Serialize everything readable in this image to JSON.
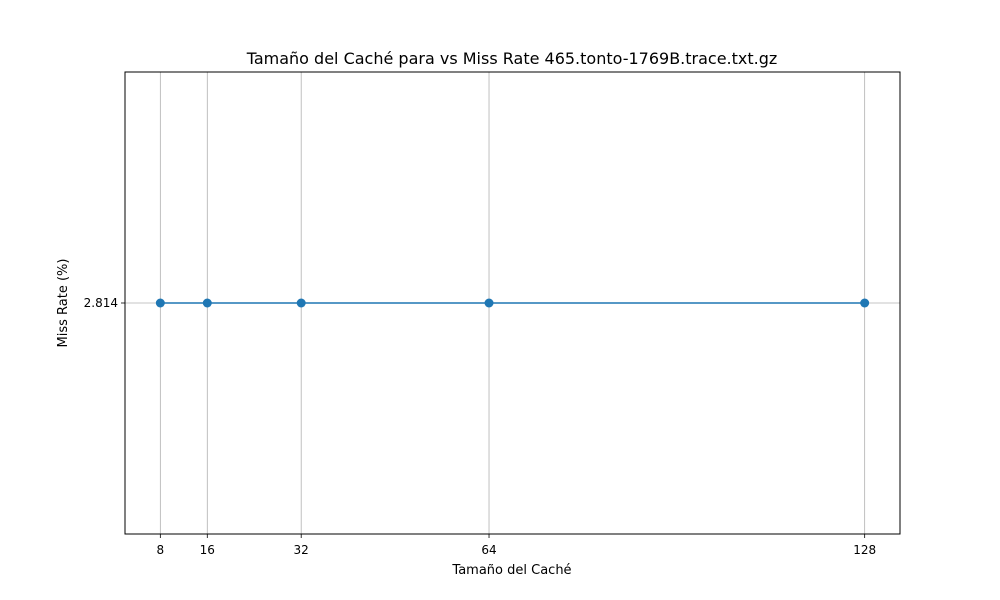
{
  "chart_data": {
    "type": "line",
    "title": "Tamaño del Caché para vs Miss Rate  465.tonto-1769B.trace.txt.gz",
    "xlabel": "Tamaño del Caché",
    "ylabel": "Miss Rate (%)",
    "x": [
      8,
      16,
      32,
      64,
      128
    ],
    "xticks": [
      8,
      16,
      32,
      64,
      128
    ],
    "series": [
      {
        "values": [
          2.814,
          2.814,
          2.814,
          2.814,
          2.814
        ]
      }
    ],
    "yticks": [
      "2.814"
    ],
    "xlim": [
      1.98,
      134.02
    ],
    "ylim": [
      2.764,
      2.864
    ],
    "grid": true,
    "colors": {
      "line": "#1f77b4",
      "marker": "#1f77b4",
      "grid": "#b0b0b0"
    }
  }
}
